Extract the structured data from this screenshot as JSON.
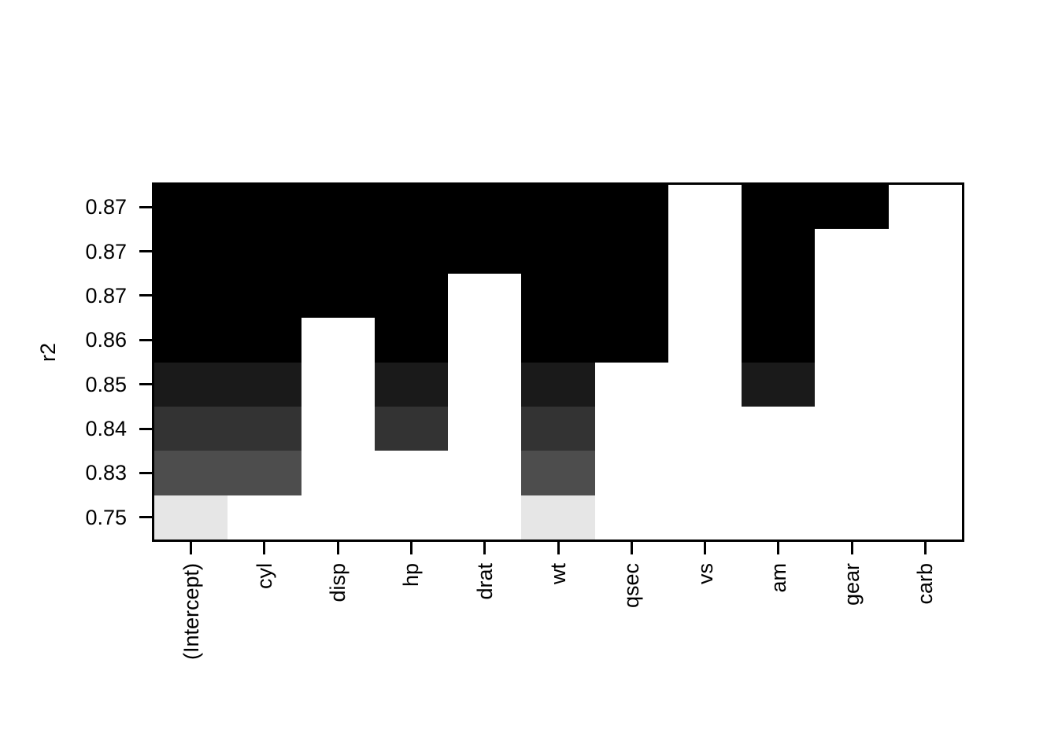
{
  "figure": {
    "background": "#ffffff",
    "border_color": "#000000"
  },
  "chart_data": {
    "type": "heatmap",
    "title": "",
    "xlabel": "",
    "ylabel": "r2",
    "legend": "none",
    "grid": false,
    "off_color": "#ffffff",
    "x_categories": [
      "(Intercept)",
      "cyl",
      "disp",
      "hp",
      "drat",
      "wt",
      "qsec",
      "vs",
      "am",
      "gear",
      "carb"
    ],
    "y_tick_labels": [
      "0.87",
      "0.87",
      "0.87",
      "0.86",
      "0.85",
      "0.84",
      "0.83",
      "0.75"
    ],
    "rows": [
      {
        "r2_label": "0.87",
        "shade": "#000000",
        "members": [
          1,
          1,
          1,
          1,
          1,
          1,
          1,
          0,
          1,
          1,
          0
        ]
      },
      {
        "r2_label": "0.87",
        "shade": "#000000",
        "members": [
          1,
          1,
          1,
          1,
          1,
          1,
          1,
          0,
          1,
          0,
          0
        ]
      },
      {
        "r2_label": "0.87",
        "shade": "#000000",
        "members": [
          1,
          1,
          1,
          1,
          0,
          1,
          1,
          0,
          1,
          0,
          0
        ]
      },
      {
        "r2_label": "0.86",
        "shade": "#000000",
        "members": [
          1,
          1,
          0,
          1,
          0,
          1,
          1,
          0,
          1,
          0,
          0
        ]
      },
      {
        "r2_label": "0.85",
        "shade": "#1a1a1a",
        "members": [
          1,
          1,
          0,
          1,
          0,
          1,
          0,
          0,
          1,
          0,
          0
        ]
      },
      {
        "r2_label": "0.84",
        "shade": "#333333",
        "members": [
          1,
          1,
          0,
          1,
          0,
          1,
          0,
          0,
          0,
          0,
          0
        ]
      },
      {
        "r2_label": "0.83",
        "shade": "#4d4d4d",
        "members": [
          1,
          1,
          0,
          0,
          0,
          1,
          0,
          0,
          0,
          0,
          0
        ]
      },
      {
        "r2_label": "0.75",
        "shade": "#e6e6e6",
        "members": [
          1,
          0,
          0,
          0,
          0,
          1,
          0,
          0,
          0,
          0,
          0
        ]
      }
    ]
  }
}
